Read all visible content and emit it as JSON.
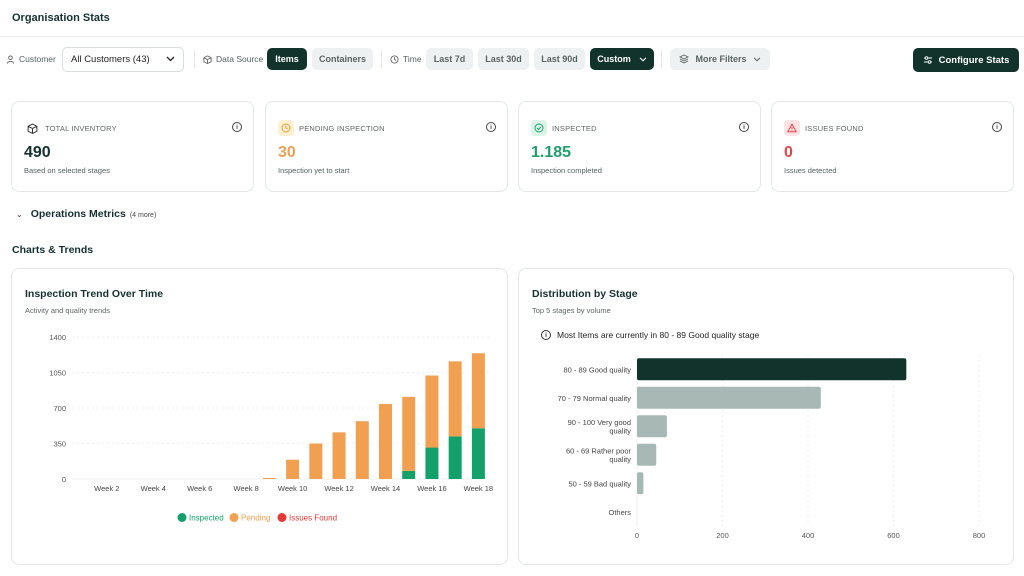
{
  "page": {
    "title": "Organisation Stats"
  },
  "filters": {
    "customer_label": "Customer",
    "customer_value": "All Customers (43)",
    "data_source_label": "Data Source",
    "data_source_options": [
      "Items",
      "Containers"
    ],
    "data_source_selected": "Items",
    "time_label": "Time",
    "time_options": [
      "Last 7d",
      "Last 30d",
      "Last 90d",
      "Custom"
    ],
    "time_selected": "Custom",
    "more_filters": "More Filters",
    "configure_button": "Configure Stats"
  },
  "stats": [
    {
      "label": "TOTAL INVENTORY",
      "value": "490",
      "sub": "Based on selected stages",
      "color": "#163030",
      "icon": "box-icon",
      "icon_bg": "#ffffff"
    },
    {
      "label": "PENDING INSPECTION",
      "value": "30",
      "sub": "Inspection yet to start",
      "color": "#e8a15a",
      "icon": "clock-icon",
      "icon_bg": "#fdf0d5"
    },
    {
      "label": "INSPECTED",
      "value": "1.185",
      "sub": "Inspection completed",
      "color": "#1f9e6e",
      "icon": "check-circle-icon",
      "icon_bg": "#dcf3e8"
    },
    {
      "label": "ISSUES FOUND",
      "value": "0",
      "sub": "Issues detected",
      "color": "#e0454a",
      "icon": "warning-icon",
      "icon_bg": "#fde3e3"
    }
  ],
  "operations": {
    "title": "Operations Metrics",
    "more": "(4 more)"
  },
  "section": {
    "title": "Charts & Trends"
  },
  "trend_card": {
    "title": "Inspection Trend Over Time",
    "subtitle": "Activity and quality trends"
  },
  "dist_card": {
    "title": "Distribution by Stage",
    "subtitle": "Top 5 stages by volume",
    "note": "Most Items are currently in 80 - 89 Good quality stage"
  },
  "colors": {
    "inspected": "#14a06a",
    "pending": "#f0a050",
    "issues": "#e53935",
    "bar_primary": "#12322c",
    "bar_secondary": "#a8b9b5"
  },
  "chart_data": [
    {
      "type": "bar",
      "stacked": true,
      "categories": [
        "Week 1",
        "Week 2",
        "Week 3",
        "Week 4",
        "Week 5",
        "Week 6",
        "Week 7",
        "Week 8",
        "Week 9",
        "Week 10",
        "Week 11",
        "Week 12",
        "Week 13",
        "Week 14",
        "Week 15",
        "Week 16",
        "Week 17",
        "Week 18"
      ],
      "tick_labels": [
        "Week 2",
        "Week 4",
        "Week 6",
        "Week 8",
        "Week 10",
        "Week 12",
        "Week 14",
        "Week 16",
        "Week 18"
      ],
      "series": [
        {
          "name": "Inspected",
          "values": [
            0,
            0,
            0,
            0,
            0,
            0,
            0,
            0,
            0,
            0,
            0,
            0,
            0,
            0,
            80,
            310,
            420,
            500
          ]
        },
        {
          "name": "Pending",
          "values": [
            0,
            0,
            0,
            0,
            0,
            0,
            0,
            0,
            10,
            190,
            350,
            460,
            570,
            740,
            730,
            710,
            740,
            740
          ]
        },
        {
          "name": "Issues Found",
          "values": [
            0,
            0,
            0,
            0,
            0,
            0,
            0,
            0,
            0,
            0,
            0,
            0,
            0,
            0,
            0,
            0,
            0,
            0
          ]
        }
      ],
      "yticks": [
        0,
        350,
        700,
        1050,
        1400
      ],
      "ylim": [
        0,
        1400
      ],
      "legend": "bottom",
      "grid": true
    },
    {
      "type": "bar",
      "orientation": "horizontal",
      "categories": [
        "80 - 89 Good quality",
        "70 - 79 Normal quality",
        "90 - 100 Very good quality",
        "60 - 69 Rather poor quality",
        "50 - 59 Bad quality",
        "Others"
      ],
      "values": [
        630,
        430,
        70,
        45,
        15,
        0
      ],
      "xticks": [
        0,
        200,
        400,
        600,
        800
      ],
      "xlim": [
        0,
        800
      ],
      "grid": true
    }
  ]
}
